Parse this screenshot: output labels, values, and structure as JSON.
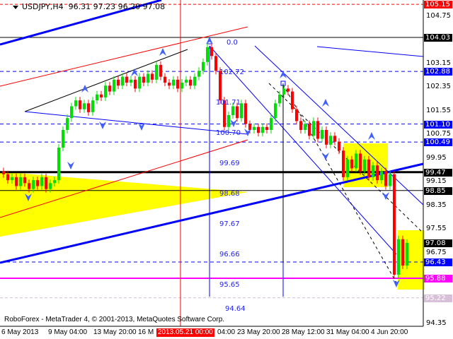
{
  "header": {
    "symbol": "USDJPY,H4",
    "ohlc": "96.31 97.23 96.20 97.08"
  },
  "footer": {
    "copyright": "RoboForex - MetaTrader 4, © 2001-2013, MetaQuotes Software Corp."
  },
  "colors": {
    "bull": "#00e000",
    "bear": "#ff0000",
    "accent_blue": "#0000ff",
    "magenta": "#ff00ff",
    "yellow_zone": "#ffff00"
  },
  "chart_data": {
    "type": "candlestick",
    "ylim": [
      94.2,
      105.3
    ],
    "y_ticks": [
      "104.75",
      "103.15",
      "102.35",
      "101.55",
      "100.75",
      "99.95",
      "99.15",
      "98.35",
      "97.55",
      "96.75",
      "94.35"
    ],
    "price_labels": [
      {
        "value": "105.15",
        "bg": "#ff0000",
        "fg": "#ffffff"
      },
      {
        "value": "104.03",
        "bg": "#000000",
        "fg": "#ffffff"
      },
      {
        "value": "102.88",
        "bg": "#0000ff",
        "fg": "#ffffff"
      },
      {
        "value": "101.10",
        "bg": "#0000ff",
        "fg": "#ffffff"
      },
      {
        "value": "100.49",
        "bg": "#0000ff",
        "fg": "#ffffff"
      },
      {
        "value": "99.47",
        "bg": "#000000",
        "fg": "#ffffff"
      },
      {
        "value": "98.85",
        "bg": "#000000",
        "fg": "#ffffff"
      },
      {
        "value": "97.08",
        "bg": "#000000",
        "fg": "#ffffff"
      },
      {
        "value": "96.43",
        "bg": "#0000ff",
        "fg": "#ffffff"
      },
      {
        "value": "95.88",
        "bg": "#ff00ff",
        "fg": "#ffffff"
      },
      {
        "value": "95.22",
        "bg": "#d8c0d8",
        "fg": "#ffffff"
      }
    ],
    "x_ticks": [
      "6 May 2013",
      "9 May 04:00",
      "13 May 20:00",
      "16 M",
      "04:00",
      "23 May 20:00",
      "28 May 12:00",
      "31 May 04:00",
      "4 Jun 20:00"
    ],
    "x_highlight": "2013.05.21 00:00",
    "fibo_levels": [
      "0.0",
      "102.72",
      "101.71",
      "100.70",
      "99.69",
      "98.68",
      "97.67",
      "96.66",
      "95.65",
      "94.64"
    ],
    "closes": [
      99.4,
      99.2,
      99.3,
      99.0,
      99.3,
      99.1,
      98.9,
      99.2,
      99.0,
      99.3,
      98.9,
      99.1,
      99.2,
      100.3,
      100.9,
      101.3,
      101.7,
      101.9,
      101.6,
      101.8,
      101.5,
      101.9,
      102.1,
      102.0,
      102.4,
      102.2,
      102.6,
      102.4,
      102.7,
      102.5,
      102.6,
      102.3,
      102.7,
      102.5,
      102.8,
      102.6,
      103.1,
      102.7,
      102.5,
      102.4,
      102.6,
      102.3,
      102.5,
      102.6,
      102.4,
      102.7,
      102.9,
      103.2,
      103.7,
      103.4,
      102.9,
      101.9,
      101.0,
      101.4,
      101.7,
      101.3,
      101.8,
      101.1,
      100.9,
      101.0,
      100.8,
      101.0,
      100.9,
      101.3,
      101.8,
      102.1,
      102.3,
      102.2,
      101.6,
      101.2,
      100.9,
      101.1,
      100.7,
      101.2,
      100.6,
      100.9,
      100.4,
      100.7,
      100.5,
      100.2,
      99.3,
      99.9,
      99.6,
      100.1,
      99.5,
      99.9,
      99.3,
      99.7,
      99.2,
      99.5,
      99.0,
      99.4,
      96.0,
      97.2,
      96.31,
      97.08
    ]
  }
}
